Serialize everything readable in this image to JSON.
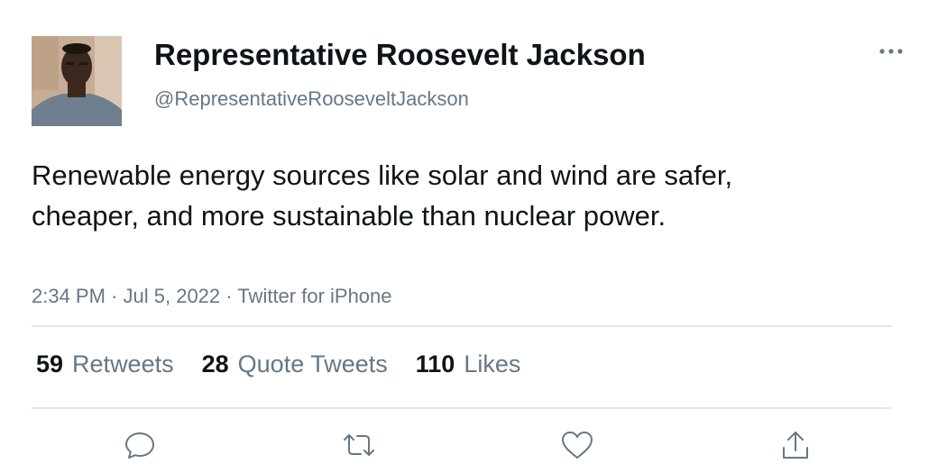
{
  "author": {
    "name": "Representative Roosevelt Jackson",
    "handle": "@RepresentativeRooseveltJackson"
  },
  "tweet": {
    "text": "Renewable energy sources like solar and wind are safer, cheaper, and more sustainable than nuclear power.",
    "time": "2:34 PM",
    "date": "Jul 5, 2022",
    "source": "Twitter for iPhone",
    "separator": "·"
  },
  "stats": {
    "retweets": {
      "count": "59",
      "label": "Retweets"
    },
    "quotes": {
      "count": "28",
      "label": "Quote Tweets"
    },
    "likes": {
      "count": "110",
      "label": "Likes"
    }
  },
  "icons": {
    "more": "more-horizontal-icon",
    "reply": "reply-icon",
    "retweet": "retweet-icon",
    "like": "heart-icon",
    "share": "share-icon"
  },
  "colors": {
    "text": "#0f1419",
    "secondary": "#657786",
    "divider": "#e1e8ed"
  }
}
